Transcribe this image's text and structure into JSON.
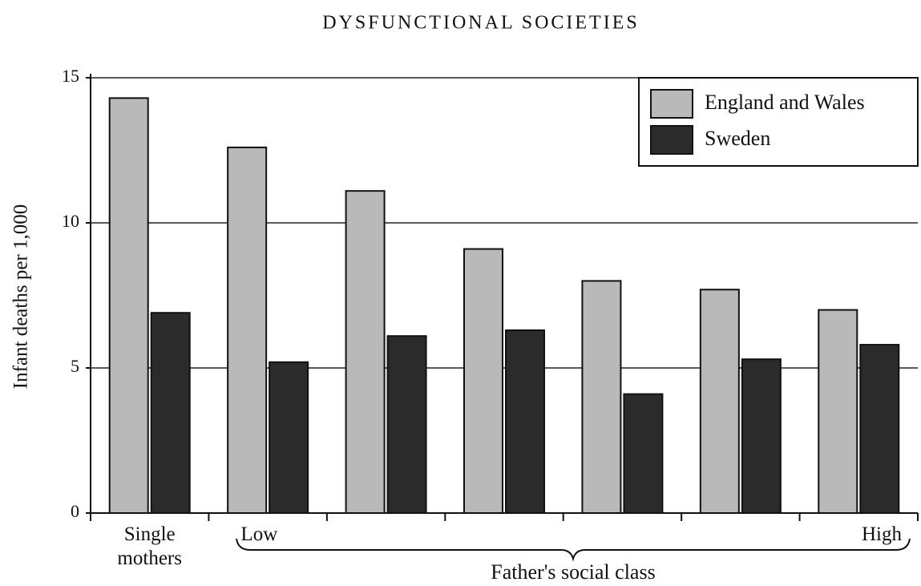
{
  "chart_data": {
    "type": "bar",
    "title": "DYSFUNCTIONAL SOCIETIES",
    "y_label": "Infant deaths per 1,000",
    "x_label": "Father's social class",
    "categories": [
      "Single mothers",
      "Low",
      null,
      null,
      null,
      null,
      "High"
    ],
    "series": [
      {
        "name": "England and Wales",
        "color": "#b9b9b9",
        "values": [
          14.3,
          12.6,
          11.1,
          9.1,
          8.0,
          7.7,
          7.0
        ]
      },
      {
        "name": "Sweden",
        "color": "#2b2b2b",
        "values": [
          6.9,
          5.2,
          6.1,
          6.3,
          4.1,
          5.3,
          5.8
        ]
      }
    ],
    "ylim": [
      0,
      15
    ],
    "yticks": [
      0,
      5,
      10,
      15
    ],
    "grid": true,
    "legend": "top-right"
  }
}
